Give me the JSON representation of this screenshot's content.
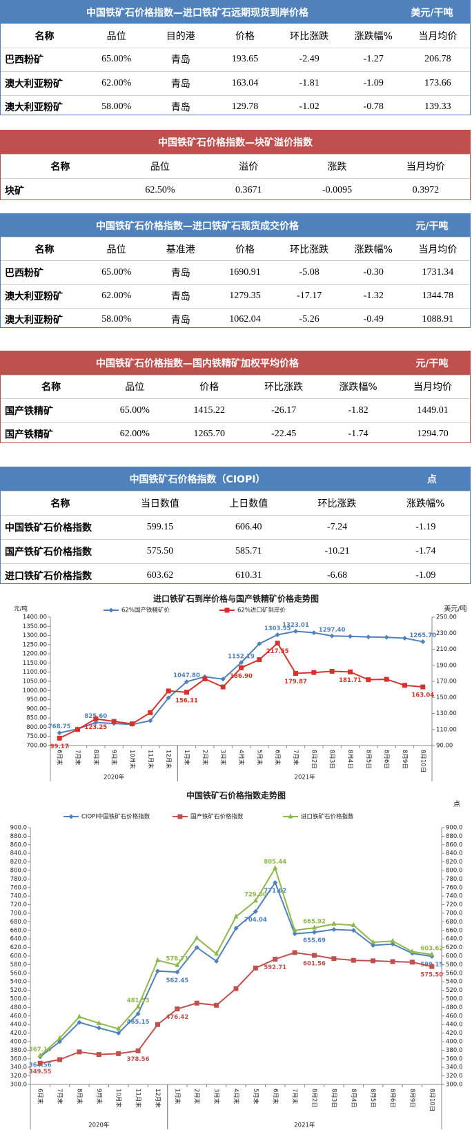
{
  "tables": [
    {
      "title": "中国铁矿石价格指数—进口铁矿石远期现货到岸价格",
      "unit": "美元/干吨",
      "color": "#4f81bd",
      "header": [
        "名称",
        "品位",
        "目的港",
        "价格",
        "环比涨跌",
        "涨跌幅%",
        "当月均价"
      ],
      "rows": [
        [
          "巴西粉矿",
          "65.00%",
          "青岛",
          "193.65",
          "-2.49",
          "-1.27",
          "206.78"
        ],
        [
          "澳大利亚粉矿",
          "62.00%",
          "青岛",
          "163.04",
          "-1.81",
          "-1.09",
          "173.66"
        ],
        [
          "澳大利亚粉矿",
          "58.00%",
          "青岛",
          "129.78",
          "-1.02",
          "-0.78",
          "139.33"
        ]
      ]
    },
    {
      "title": "中国铁矿石价格指数—块矿溢价指数",
      "color": "#c0504d",
      "header": [
        "名称",
        "品位",
        "溢价",
        "涨跌",
        "当月均价"
      ],
      "rows": [
        [
          "块矿",
          "62.50%",
          "0.3671",
          "-0.0095",
          "0.3972"
        ]
      ]
    },
    {
      "title": "中国铁矿石价格指数—进口铁矿石现货成交价格",
      "unit": "元/干吨",
      "color": "#4f81bd",
      "header": [
        "名称",
        "品位",
        "基准港",
        "价格",
        "环比涨跌",
        "涨跌幅%",
        "当月均价"
      ],
      "rows": [
        [
          "巴西粉矿",
          "65.00%",
          "青岛",
          "1690.91",
          "-5.08",
          "-0.30",
          "1731.34"
        ],
        [
          "澳大利亚粉矿",
          "62.00%",
          "青岛",
          "1279.35",
          "-17.17",
          "-1.32",
          "1344.78"
        ],
        [
          "澳大利亚粉矿",
          "58.00%",
          "青岛",
          "1062.04",
          "-5.26",
          "-0.49",
          "1088.91"
        ]
      ]
    },
    {
      "title": "中国铁矿石价格指数—国内铁精矿加权平均价格",
      "unit": "元/干吨",
      "color": "#c0504d",
      "header": [
        "名称",
        "品位",
        "价格",
        "环比涨跌",
        "涨跌幅%",
        "当月均价"
      ],
      "rows": [
        [
          "国产铁精矿",
          "65.00%",
          "1415.22",
          "-26.17",
          "-1.82",
          "1449.01"
        ],
        [
          "国产铁精矿",
          "62.00%",
          "1265.70",
          "-22.45",
          "-1.74",
          "1294.70"
        ]
      ]
    },
    {
      "title": "中国铁矿石价格指数（CIOPI）",
      "unit": "点",
      "color": "#4f81bd",
      "header": [
        "名称",
        "当日数值",
        "上日数值",
        "环比涨跌",
        "涨跌幅%"
      ],
      "rows": [
        [
          "中国铁矿石价格指数",
          "599.15",
          "606.40",
          "-7.24",
          "-1.19"
        ],
        [
          "国产铁矿石价格指数",
          "575.50",
          "585.71",
          "-10.21",
          "-1.74"
        ],
        [
          "进口铁矿石价格指数",
          "603.62",
          "610.31",
          "-6.68",
          "-1.09"
        ]
      ]
    }
  ],
  "chart_data": [
    {
      "type": "line",
      "title": "进口铁矿石到岸价格与国产铁精矿价格走势图",
      "y_label": "元/吨",
      "y2_label": "美元/吨",
      "categories": [
        "6月末",
        "7月末",
        "8月末",
        "9月末",
        "10月末",
        "11月末",
        "12月末",
        "1月末",
        "2月末",
        "3月末",
        "4月末",
        "5月末",
        "6月末",
        "7月末",
        "8月2日",
        "8月3日",
        "8月4日",
        "8月5日",
        "8月6日",
        "8月9日",
        "8月10日"
      ],
      "x_groups": [
        {
          "label": "2020年",
          "span": 7
        },
        {
          "label": "2021年",
          "span": 14
        }
      ],
      "ylim": [
        700,
        1400
      ],
      "yticks": [
        {
          "value": 700,
          "label": "700.00"
        },
        {
          "value": 750,
          "label": "750.00"
        },
        {
          "value": 800,
          "label": "800.00"
        },
        {
          "value": 850,
          "label": "850.00"
        },
        {
          "value": 900,
          "label": "900.00"
        },
        {
          "value": 950,
          "label": "950.00"
        },
        {
          "value": 1000,
          "label": "1000.00"
        },
        {
          "value": 1050,
          "label": "1050.00"
        },
        {
          "value": 1100,
          "label": "1100.00"
        },
        {
          "value": 1150,
          "label": "1150.00"
        },
        {
          "value": 1200,
          "label": "1200.00"
        },
        {
          "value": 1250,
          "label": "1250.00"
        },
        {
          "value": 1300,
          "label": "1300.00"
        },
        {
          "value": 1350,
          "label": "1350.00"
        },
        {
          "value": 1400,
          "label": "1400.00"
        }
      ],
      "y2lim": [
        90,
        250
      ],
      "y2ticks": [
        {
          "value": 90,
          "label": "90.00"
        },
        {
          "value": 110,
          "label": "110.00"
        },
        {
          "value": 130,
          "label": "130.00"
        },
        {
          "value": 150,
          "label": "150.00"
        },
        {
          "value": 170,
          "label": "170.00"
        },
        {
          "value": 190,
          "label": "190.00"
        },
        {
          "value": 210,
          "label": "210.00"
        },
        {
          "value": 230,
          "label": "230.00"
        },
        {
          "value": 250,
          "label": "250.00"
        }
      ],
      "series": [
        {
          "name": "62%国产铁精矿价",
          "color": "#4f81bd",
          "marker": "diamond",
          "values": [
            768.75,
            790,
            825.6,
            820,
            815,
            835,
            960,
            1047.8,
            1075,
            1062,
            1152.19,
            1255,
            1303.55,
            1323.01,
            1315,
            1297.4,
            1295,
            1292,
            1290,
            1285,
            1265.7
          ],
          "value_labels": [
            "768.75",
            null,
            "825.60",
            null,
            null,
            null,
            null,
            "1047.80",
            null,
            null,
            "1152.19",
            null,
            "1303.55",
            "1323.01",
            null,
            "1297.40",
            null,
            null,
            null,
            null,
            "1265.70"
          ]
        },
        {
          "name": "62%进口矿到岸价",
          "color": "#d7312b",
          "marker": "square",
          "axis": "y2",
          "values": [
            99.17,
            110,
            123.25,
            120,
            117,
            131,
            158,
            156.31,
            173,
            163,
            186.9,
            197,
            217.55,
            179.87,
            181,
            182.5,
            181.71,
            172,
            172.5,
            165,
            163.04
          ],
          "value_labels": [
            "99.17",
            null,
            "123.25",
            null,
            null,
            null,
            null,
            "156.31",
            null,
            null,
            "186.90",
            null,
            "217.55",
            "179.87",
            null,
            null,
            "181.71",
            null,
            null,
            null,
            "163.04"
          ]
        }
      ]
    },
    {
      "type": "line",
      "title": "中国铁矿石价格指数走势图",
      "y2_label": "点",
      "categories": [
        "6月末",
        "7月末",
        "8月末",
        "9月末",
        "10月末",
        "11月末",
        "12月末",
        "1月末",
        "2月末",
        "3月末",
        "4月末",
        "5月末",
        "6月末",
        "7月末",
        "8月2日",
        "8月3日",
        "8月4日",
        "8月5日",
        "8月6日",
        "8月9日",
        "8月10日"
      ],
      "x_groups": [
        {
          "label": "2020年",
          "span": 7
        },
        {
          "label": "2021年",
          "span": 14
        }
      ],
      "ylim": [
        300,
        900
      ],
      "yticks": [
        {
          "value": 300,
          "label": "300.0"
        },
        {
          "value": 320,
          "label": "320.0"
        },
        {
          "value": 340,
          "label": "340.0"
        },
        {
          "value": 360,
          "label": "360.0"
        },
        {
          "value": 380,
          "label": "380.0"
        },
        {
          "value": 400,
          "label": "400.0"
        },
        {
          "value": 420,
          "label": "420.0"
        },
        {
          "value": 440,
          "label": "440.0"
        },
        {
          "value": 460,
          "label": "460.0"
        },
        {
          "value": 480,
          "label": "480.0"
        },
        {
          "value": 500,
          "label": "500.0"
        },
        {
          "value": 520,
          "label": "520.0"
        },
        {
          "value": 540,
          "label": "540.0"
        },
        {
          "value": 560,
          "label": "560.0"
        },
        {
          "value": 580,
          "label": "580.0"
        },
        {
          "value": 600,
          "label": "600.0"
        },
        {
          "value": 620,
          "label": "620.0"
        },
        {
          "value": 640,
          "label": "640.0"
        },
        {
          "value": 660,
          "label": "660.0"
        },
        {
          "value": 680,
          "label": "680.0"
        },
        {
          "value": 700,
          "label": "700.0"
        },
        {
          "value": 720,
          "label": "720.0"
        },
        {
          "value": 740,
          "label": "740.0"
        },
        {
          "value": 760,
          "label": "760.0"
        },
        {
          "value": 780,
          "label": "780.0"
        },
        {
          "value": 800,
          "label": "800.0"
        },
        {
          "value": 820,
          "label": "820.0"
        },
        {
          "value": 840,
          "label": "840.0"
        },
        {
          "value": 860,
          "label": "860.0"
        },
        {
          "value": 880,
          "label": "880.0"
        },
        {
          "value": 900,
          "label": "900.0"
        }
      ],
      "y2lim": [
        300,
        900
      ],
      "y2ticks": [
        {
          "value": 300,
          "label": "300.0"
        },
        {
          "value": 320,
          "label": "320.0"
        },
        {
          "value": 340,
          "label": "340.0"
        },
        {
          "value": 360,
          "label": "360.0"
        },
        {
          "value": 380,
          "label": "380.0"
        },
        {
          "value": 400,
          "label": "400.0"
        },
        {
          "value": 420,
          "label": "420.0"
        },
        {
          "value": 440,
          "label": "440.0"
        },
        {
          "value": 460,
          "label": "460.0"
        },
        {
          "value": 480,
          "label": "480.0"
        },
        {
          "value": 500,
          "label": "500.0"
        },
        {
          "value": 520,
          "label": "520.0"
        },
        {
          "value": 540,
          "label": "540.0"
        },
        {
          "value": 560,
          "label": "560.0"
        },
        {
          "value": 580,
          "label": "580.0"
        },
        {
          "value": 600,
          "label": "600.0"
        },
        {
          "value": 620,
          "label": "620.0"
        },
        {
          "value": 640,
          "label": "640.0"
        },
        {
          "value": 660,
          "label": "660.0"
        },
        {
          "value": 680,
          "label": "680.0"
        },
        {
          "value": 700,
          "label": "700.0"
        },
        {
          "value": 720,
          "label": "720.0"
        },
        {
          "value": 740,
          "label": "740.0"
        },
        {
          "value": 760,
          "label": "760.0"
        },
        {
          "value": 780,
          "label": "780.0"
        },
        {
          "value": 800,
          "label": "800.0"
        },
        {
          "value": 820,
          "label": "820.0"
        },
        {
          "value": 840,
          "label": "840.0"
        },
        {
          "value": 860,
          "label": "860.0"
        },
        {
          "value": 880,
          "label": "880.0"
        },
        {
          "value": 900,
          "label": "900.0"
        }
      ],
      "series": [
        {
          "name": "CIOPI中国铁矿石价格指数",
          "color": "#4f81bd",
          "marker": "diamond",
          "values": [
            364.56,
            400,
            445,
            432,
            420,
            465.15,
            565,
            562.45,
            620,
            588,
            665,
            704.04,
            771.62,
            652,
            655.69,
            662,
            660,
            625,
            628,
            606.4,
            599.15
          ],
          "value_labels": [
            "364.56",
            null,
            null,
            null,
            null,
            "465.15",
            null,
            "562.45",
            null,
            null,
            null,
            "704.04",
            "771.62",
            null,
            "655.69",
            null,
            null,
            null,
            null,
            null,
            "599.15"
          ]
        },
        {
          "name": "国产铁矿石价格指数",
          "color": "#c0504d",
          "marker": "square",
          "values": [
            349.55,
            358,
            376,
            370,
            372,
            378.56,
            440,
            476.42,
            490,
            485,
            524,
            572,
            592.71,
            608,
            601.56,
            594,
            590,
            589,
            587,
            585.71,
            575.5
          ],
          "value_labels": [
            "349.55",
            null,
            null,
            null,
            null,
            "378.56",
            null,
            "476.42",
            null,
            null,
            null,
            null,
            "592.71",
            null,
            "601.56",
            null,
            null,
            null,
            null,
            null,
            "575.50"
          ]
        },
        {
          "name": "进口铁矿石价格指数",
          "color": "#8db84a",
          "marker": "triangle",
          "values": [
            367.16,
            408,
            458,
            443,
            430,
            481.53,
            590,
            578.71,
            642,
            605,
            692,
            729.0,
            805.44,
            660,
            665.92,
            675,
            672,
            632,
            635,
            610.31,
            603.62
          ],
          "value_labels": [
            "367.16",
            null,
            null,
            null,
            null,
            "481.53",
            null,
            "578.71",
            null,
            null,
            null,
            "729.00",
            "805.44",
            null,
            "665.92",
            null,
            null,
            null,
            null,
            null,
            "603.62"
          ]
        }
      ]
    }
  ]
}
